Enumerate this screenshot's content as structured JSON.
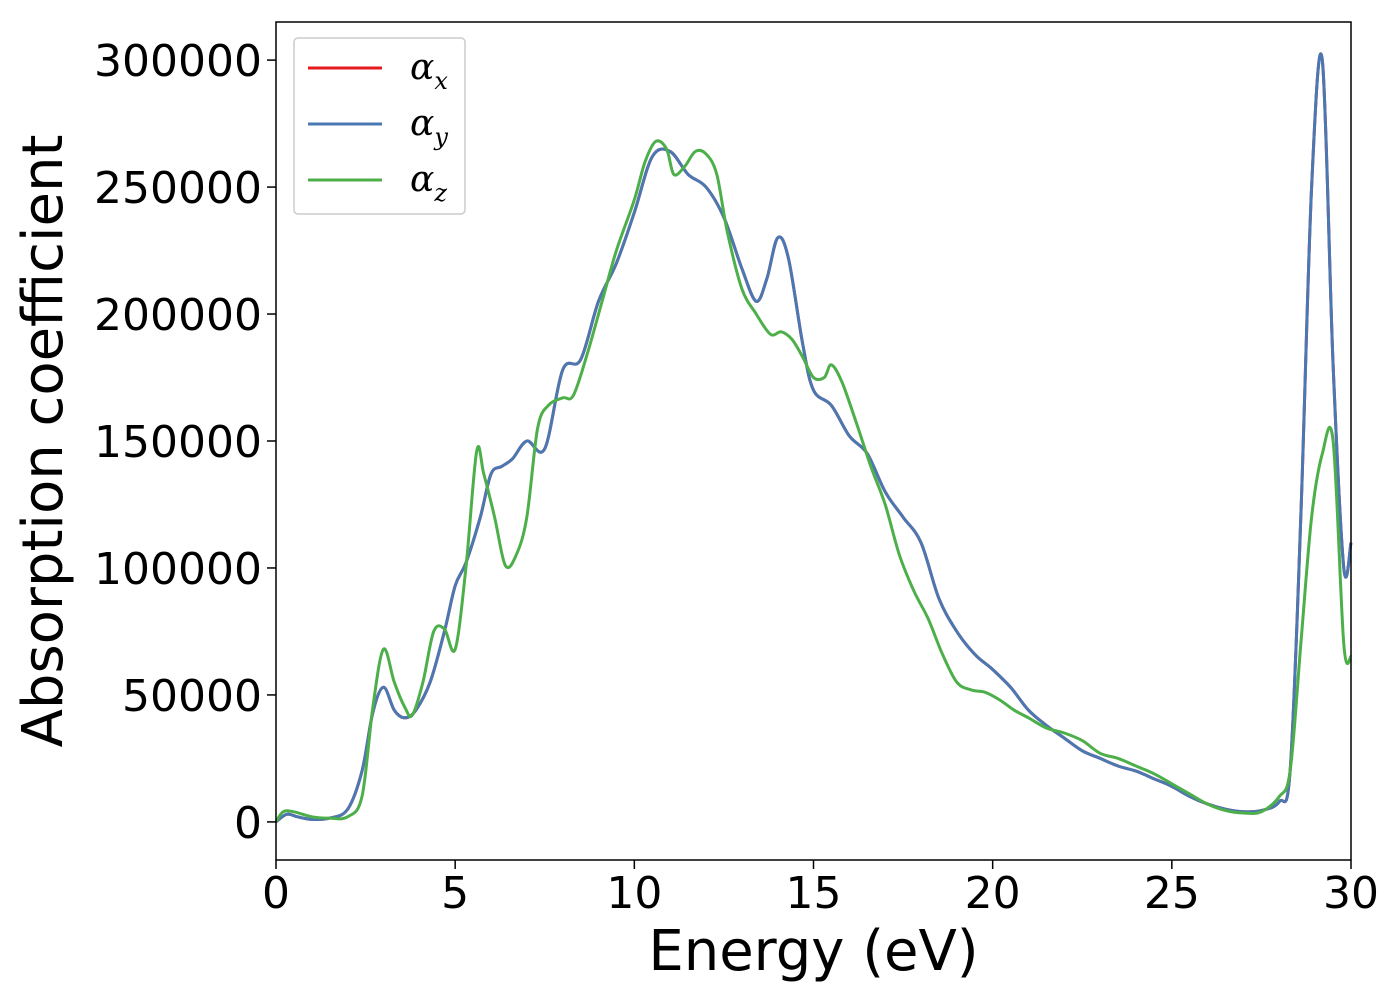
{
  "chart_data": {
    "type": "line",
    "xlabel": "Energy (eV)",
    "ylabel": "Absorption coefficient",
    "xlim": [
      0,
      30
    ],
    "ylim": [
      -15000,
      315000
    ],
    "xticks": [
      0,
      5,
      10,
      15,
      20,
      25,
      30
    ],
    "yticks": [
      0,
      50000,
      100000,
      150000,
      200000,
      250000,
      300000
    ],
    "xtick_labels": [
      "0",
      "5",
      "10",
      "15",
      "20",
      "25",
      "30"
    ],
    "ytick_labels": [
      "0",
      "50000",
      "100000",
      "150000",
      "200000",
      "250000",
      "300000"
    ],
    "grid": false,
    "legend_position": "top-left",
    "series": [
      {
        "name": "αx",
        "symbol": "α",
        "sub": "x",
        "color": "#e41a1c",
        "x": [
          0,
          0.3,
          0.6,
          1.0,
          1.5,
          2.0,
          2.4,
          2.7,
          3.0,
          3.3,
          3.6,
          3.9,
          4.3,
          4.7,
          5.0,
          5.3,
          5.7,
          6.0,
          6.3,
          6.6,
          7.0,
          7.5,
          8.0,
          8.5,
          9.0,
          9.5,
          10.0,
          10.5,
          11.0,
          11.5,
          12.0,
          12.5,
          13.0,
          13.4,
          13.7,
          14.0,
          14.3,
          14.7,
          15.0,
          15.5,
          16.0,
          16.5,
          17.0,
          17.5,
          18.0,
          18.5,
          19.0,
          19.5,
          20.0,
          20.5,
          21.0,
          21.5,
          22.0,
          22.5,
          23.0,
          23.5,
          24.0,
          24.5,
          25.0,
          25.5,
          26.0,
          26.5,
          27.0,
          27.5,
          28.0,
          28.3,
          28.6,
          28.9,
          29.2,
          29.5,
          29.8,
          30.0
        ],
        "y": [
          0,
          3000,
          2000,
          1000,
          1500,
          5000,
          20000,
          43000,
          53000,
          44000,
          41000,
          44000,
          55000,
          75000,
          93000,
          102000,
          120000,
          137000,
          140000,
          143000,
          150000,
          147000,
          178000,
          182000,
          205000,
          220000,
          240000,
          262000,
          264000,
          255000,
          250000,
          238000,
          218000,
          205000,
          214000,
          230000,
          222000,
          188000,
          170000,
          164000,
          152000,
          145000,
          130000,
          120000,
          110000,
          88000,
          75000,
          66000,
          60000,
          53000,
          44000,
          38000,
          33000,
          28000,
          25000,
          22000,
          20000,
          17000,
          14000,
          10000,
          7000,
          5000,
          4000,
          4500,
          8000,
          20000,
          120000,
          250000,
          300000,
          180000,
          100000,
          110000
        ]
      },
      {
        "name": "αy",
        "symbol": "α",
        "sub": "y",
        "color": "#4a78b2",
        "x": [
          0,
          0.3,
          0.6,
          1.0,
          1.5,
          2.0,
          2.4,
          2.7,
          3.0,
          3.3,
          3.6,
          3.9,
          4.3,
          4.7,
          5.0,
          5.3,
          5.7,
          6.0,
          6.3,
          6.6,
          7.0,
          7.5,
          8.0,
          8.5,
          9.0,
          9.5,
          10.0,
          10.5,
          11.0,
          11.5,
          12.0,
          12.5,
          13.0,
          13.4,
          13.7,
          14.0,
          14.3,
          14.7,
          15.0,
          15.5,
          16.0,
          16.5,
          17.0,
          17.5,
          18.0,
          18.5,
          19.0,
          19.5,
          20.0,
          20.5,
          21.0,
          21.5,
          22.0,
          22.5,
          23.0,
          23.5,
          24.0,
          24.5,
          25.0,
          25.5,
          26.0,
          26.5,
          27.0,
          27.5,
          28.0,
          28.3,
          28.6,
          28.9,
          29.2,
          29.5,
          29.8,
          30.0
        ],
        "y": [
          0,
          3000,
          2000,
          1000,
          1500,
          5000,
          20000,
          43000,
          53000,
          44000,
          41000,
          44000,
          55000,
          75000,
          93000,
          102000,
          120000,
          137000,
          140000,
          143000,
          150000,
          147000,
          178000,
          182000,
          205000,
          220000,
          240000,
          262000,
          264000,
          255000,
          250000,
          238000,
          218000,
          205000,
          214000,
          230000,
          222000,
          188000,
          170000,
          164000,
          152000,
          145000,
          130000,
          120000,
          110000,
          88000,
          75000,
          66000,
          60000,
          53000,
          44000,
          38000,
          33000,
          28000,
          25000,
          22000,
          20000,
          17000,
          14000,
          10000,
          7000,
          5000,
          4000,
          4500,
          8000,
          20000,
          120000,
          250000,
          300000,
          180000,
          100000,
          110000
        ]
      },
      {
        "name": "αz",
        "symbol": "α",
        "sub": "z",
        "color": "#4daf4a",
        "x": [
          0,
          0.2,
          0.5,
          1.0,
          1.5,
          2.0,
          2.4,
          2.7,
          3.0,
          3.3,
          3.6,
          3.8,
          4.1,
          4.4,
          4.7,
          5.0,
          5.3,
          5.6,
          5.8,
          6.1,
          6.4,
          6.7,
          7.0,
          7.3,
          7.6,
          8.0,
          8.3,
          8.7,
          9.1,
          9.5,
          10.0,
          10.3,
          10.6,
          10.9,
          11.1,
          11.4,
          11.7,
          12.0,
          12.3,
          12.6,
          13.0,
          13.4,
          13.8,
          14.1,
          14.4,
          14.7,
          15.0,
          15.3,
          15.5,
          15.8,
          16.2,
          16.6,
          17.0,
          17.4,
          17.8,
          18.2,
          18.6,
          19.0,
          19.4,
          19.8,
          20.2,
          20.6,
          21.0,
          21.5,
          22.0,
          22.5,
          23.0,
          23.5,
          24.0,
          24.5,
          25.0,
          25.5,
          26.0,
          26.5,
          27.0,
          27.5,
          28.0,
          28.3,
          28.6,
          28.9,
          29.2,
          29.5,
          29.8,
          30.0
        ],
        "y": [
          0,
          4000,
          4000,
          2000,
          1500,
          2000,
          10000,
          45000,
          68000,
          55000,
          45000,
          42000,
          55000,
          75000,
          76000,
          68000,
          100000,
          146000,
          137000,
          120000,
          101000,
          105000,
          120000,
          155000,
          164000,
          167000,
          168000,
          185000,
          205000,
          225000,
          245000,
          260000,
          268000,
          265000,
          255000,
          258000,
          264000,
          263000,
          255000,
          232000,
          210000,
          200000,
          192000,
          193000,
          190000,
          183000,
          175000,
          175000,
          180000,
          173000,
          157000,
          140000,
          125000,
          105000,
          91000,
          80000,
          66000,
          55000,
          52000,
          51000,
          48000,
          44000,
          41000,
          37000,
          35000,
          32000,
          27000,
          25000,
          22000,
          19000,
          15000,
          11000,
          7000,
          4500,
          3500,
          4000,
          10000,
          20000,
          70000,
          120000,
          145000,
          150000,
          70000,
          65000
        ]
      }
    ]
  }
}
